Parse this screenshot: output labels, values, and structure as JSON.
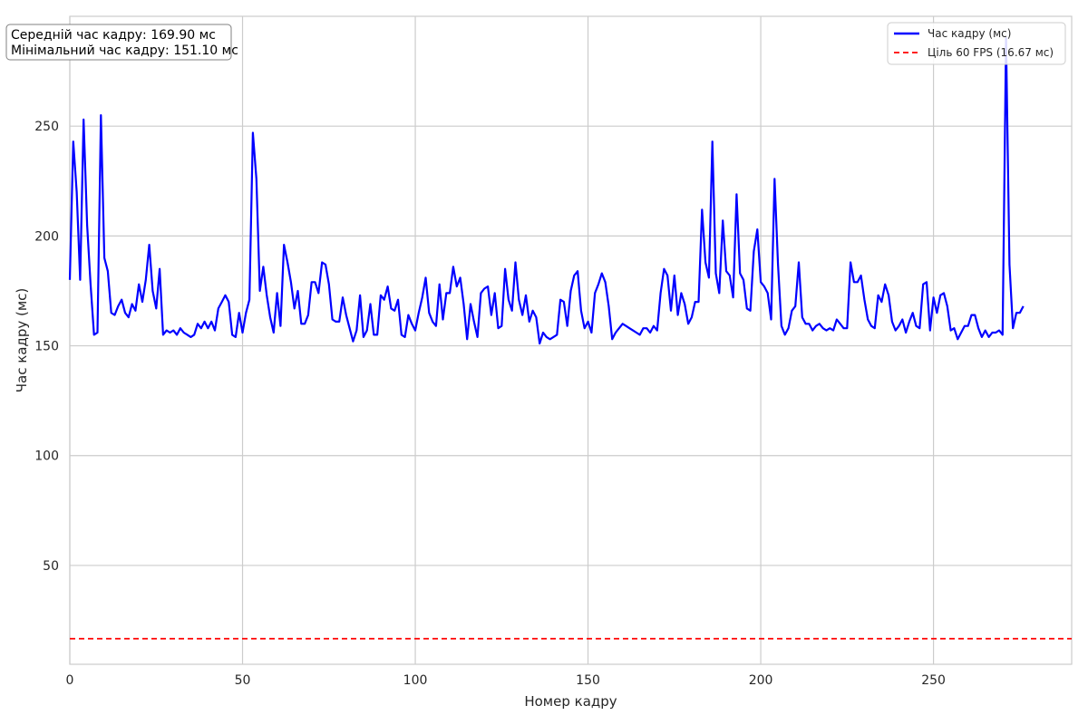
{
  "chart_data": {
    "type": "line",
    "xlabel": "Номер кадру",
    "ylabel": "Час кадру (мс)",
    "xlim": [
      0,
      290
    ],
    "ylim": [
      5,
      300
    ],
    "xticks": [
      0,
      50,
      100,
      150,
      200,
      250
    ],
    "yticks": [
      50,
      100,
      150,
      200,
      250
    ],
    "grid": true,
    "legend_position": "top-right",
    "stats": {
      "avg": "Середній час кадру: 169.90 мс",
      "min": "Мінімальний час кадру: 151.10 мс"
    },
    "series": [
      {
        "name": "Час кадру (мс)",
        "color": "#0000ff",
        "style": "solid",
        "x": [
          0,
          1,
          2,
          3,
          4,
          5,
          6,
          7,
          8,
          9,
          10,
          11,
          12,
          13,
          14,
          15,
          16,
          17,
          18,
          19,
          20,
          21,
          22,
          23,
          24,
          25,
          26,
          27,
          28,
          29,
          30,
          31,
          32,
          33,
          34,
          35,
          36,
          37,
          38,
          39,
          40,
          41,
          42,
          43,
          44,
          45,
          46,
          47,
          48,
          49,
          50,
          51,
          52,
          53,
          54,
          55,
          56,
          57,
          58,
          59,
          60,
          61,
          62,
          63,
          64,
          65,
          66,
          67,
          68,
          69,
          70,
          71,
          72,
          73,
          74,
          75,
          76,
          77,
          78,
          79,
          80,
          81,
          82,
          83,
          84,
          85,
          86,
          87,
          88,
          89,
          90,
          91,
          92,
          93,
          94,
          95,
          96,
          97,
          98,
          99,
          100,
          101,
          102,
          103,
          104,
          105,
          106,
          107,
          108,
          109,
          110,
          111,
          112,
          113,
          114,
          115,
          116,
          117,
          118,
          119,
          120,
          121,
          122,
          123,
          124,
          125,
          126,
          127,
          128,
          129,
          130,
          131,
          132,
          133,
          134,
          135,
          136,
          137,
          138,
          139,
          140,
          141,
          142,
          143,
          144,
          145,
          146,
          147,
          148,
          149,
          150,
          151,
          152,
          153,
          154,
          155,
          156,
          157,
          158,
          159,
          160,
          161,
          162,
          163,
          164,
          165,
          166,
          167,
          168,
          169,
          170,
          171,
          172,
          173,
          174,
          175,
          176,
          177,
          178,
          179,
          180,
          181,
          182,
          183,
          184,
          185,
          186,
          187,
          188,
          189,
          190,
          191,
          192,
          193,
          194,
          195,
          196,
          197,
          198,
          199,
          200,
          201,
          202,
          203,
          204,
          205,
          206,
          207,
          208,
          209,
          210,
          211,
          212,
          213,
          214,
          215,
          216,
          217,
          218,
          219,
          220,
          221,
          222,
          223,
          224,
          225,
          226,
          227,
          228,
          229,
          230,
          231,
          232,
          233,
          234,
          235,
          236,
          237,
          238,
          239,
          240,
          241,
          242,
          243,
          244,
          245,
          246,
          247,
          248,
          249,
          250,
          251,
          252,
          253,
          254,
          255,
          256,
          257,
          258,
          259,
          260,
          261,
          262,
          263,
          264,
          265,
          266,
          267,
          268,
          269,
          270,
          271,
          272,
          273,
          274,
          275,
          276
        ],
        "values": [
          180,
          243,
          220,
          180,
          253,
          205,
          178,
          155,
          156,
          255,
          190,
          184,
          165,
          164,
          168,
          171,
          165,
          163,
          169,
          166,
          178,
          170,
          180,
          196,
          175,
          167,
          185,
          155,
          157,
          156,
          157,
          155,
          158,
          156,
          155,
          154,
          155,
          160,
          158,
          161,
          158,
          161,
          157,
          167,
          170,
          173,
          170,
          155,
          154,
          165,
          156,
          165,
          171,
          247,
          226,
          175,
          186,
          173,
          163,
          156,
          174,
          159,
          196,
          188,
          179,
          167,
          175,
          160,
          160,
          164,
          179,
          179,
          174,
          188,
          187,
          178,
          162,
          161,
          161,
          172,
          164,
          158,
          152,
          157,
          173,
          154,
          157,
          169,
          155,
          155,
          173,
          171,
          177,
          167,
          166,
          171,
          155,
          154,
          164,
          160,
          157,
          165,
          172,
          181,
          165,
          161,
          159,
          178,
          162,
          174,
          174,
          186,
          177,
          181,
          169,
          153,
          169,
          161,
          154,
          174,
          176,
          177,
          164,
          174,
          158,
          159,
          185,
          171,
          166,
          188,
          171,
          164,
          173,
          161,
          166,
          163,
          151,
          156,
          154,
          153,
          154,
          155,
          171,
          170,
          159,
          175,
          182,
          184,
          166,
          158,
          161,
          156,
          174,
          178,
          183,
          179,
          168,
          153,
          156,
          158,
          160,
          159,
          158,
          157,
          156,
          155,
          158,
          158,
          156,
          159,
          157,
          174,
          185,
          182,
          166,
          182,
          164,
          174,
          169,
          160,
          163,
          170,
          170,
          212,
          188,
          181,
          243,
          183,
          174,
          207,
          184,
          182,
          172,
          219,
          183,
          180,
          167,
          166,
          193,
          203,
          179,
          177,
          174,
          162,
          226,
          187,
          159,
          155,
          158,
          166,
          168,
          188,
          163,
          160,
          160,
          157,
          159,
          160,
          158,
          157,
          158,
          157,
          162,
          160,
          158,
          158,
          188,
          179,
          179,
          182,
          171,
          162,
          159,
          158,
          173,
          170,
          178,
          173,
          161,
          157,
          159,
          162,
          156,
          161,
          165,
          159,
          158,
          178,
          179,
          157,
          172,
          165,
          173,
          174,
          168,
          157,
          158,
          153,
          156,
          159,
          159,
          164,
          164,
          158,
          154,
          157,
          154,
          156,
          156,
          157,
          155,
          290,
          187,
          158,
          165,
          165,
          168
        ]
      },
      {
        "name": "Ціль 60 FPS (16.67 мс)",
        "color": "#ff0000",
        "style": "dashed",
        "y": 16.67
      }
    ]
  }
}
